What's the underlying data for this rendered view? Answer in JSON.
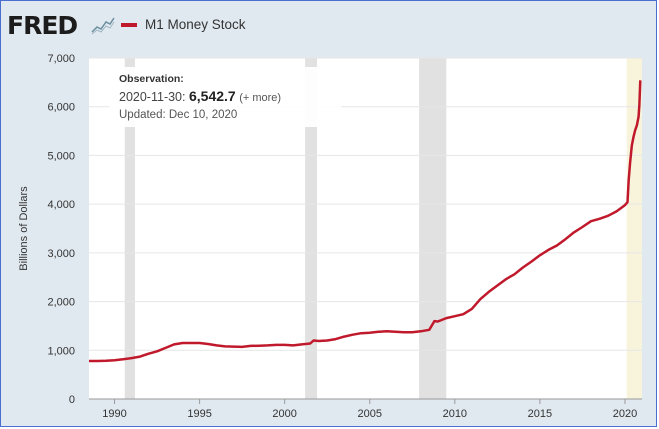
{
  "header": {
    "logo_text": "FRED",
    "logo_icon": "fred-sparkline-icon",
    "legend_label": "M1 Money Stock",
    "legend_color": "#c0192c"
  },
  "tooltip": {
    "title": "Observation:",
    "date": "2020-11-30:",
    "value": "6,542.7",
    "more": "(+ more)",
    "updated": "Updated: Dec 10, 2020"
  },
  "colors": {
    "frame_bg": "#e1e9f0",
    "plot_bg": "#ffffff",
    "recession": "#e1e1e1",
    "highlight": "#f8f4dc",
    "series": "#c0192c",
    "gridline": "#e6e6e6",
    "border": "#4a6fd1"
  },
  "chart_data": {
    "type": "line",
    "ylabel": "Billions of Dollars",
    "xlim": [
      1988.5,
      2021.0
    ],
    "ylim": [
      0,
      7000
    ],
    "x_ticks": [
      1990,
      1995,
      2000,
      2005,
      2010,
      2015,
      2020
    ],
    "y_ticks": [
      0,
      1000,
      2000,
      3000,
      4000,
      5000,
      6000,
      7000
    ],
    "y_tick_labels": [
      "0",
      "1,000",
      "2,000",
      "3,000",
      "4,000",
      "5,000",
      "6,000",
      "7,000"
    ],
    "grid": true,
    "recessions": [
      [
        1990.6,
        1991.2
      ],
      [
        2001.2,
        2001.9
      ],
      [
        2007.9,
        2009.5
      ]
    ],
    "highlight": [
      2020.1,
      2021.0
    ],
    "series": [
      {
        "name": "M1 Money Stock",
        "x": [
          1988.5,
          1989.0,
          1989.5,
          1990.0,
          1990.5,
          1991.0,
          1991.5,
          1992.0,
          1992.5,
          1993.0,
          1993.5,
          1994.0,
          1994.5,
          1995.0,
          1995.5,
          1996.0,
          1996.5,
          1997.0,
          1997.5,
          1998.0,
          1998.5,
          1999.0,
          1999.5,
          2000.0,
          2000.5,
          2001.0,
          2001.5,
          2001.7,
          2002.0,
          2002.5,
          2003.0,
          2003.5,
          2004.0,
          2004.5,
          2005.0,
          2005.5,
          2006.0,
          2006.5,
          2007.0,
          2007.5,
          2008.0,
          2008.5,
          2008.8,
          2009.0,
          2009.5,
          2010.0,
          2010.5,
          2011.0,
          2011.5,
          2012.0,
          2012.5,
          2013.0,
          2013.5,
          2014.0,
          2014.5,
          2015.0,
          2015.5,
          2016.0,
          2016.5,
          2017.0,
          2017.5,
          2018.0,
          2018.5,
          2019.0,
          2019.5,
          2020.0,
          2020.15,
          2020.22,
          2020.3,
          2020.4,
          2020.5,
          2020.6,
          2020.7,
          2020.8,
          2020.85,
          2020.9
        ],
        "values": [
          780,
          780,
          785,
          795,
          815,
          840,
          870,
          930,
          980,
          1050,
          1120,
          1150,
          1150,
          1150,
          1130,
          1100,
          1080,
          1075,
          1070,
          1090,
          1095,
          1100,
          1110,
          1110,
          1100,
          1120,
          1140,
          1200,
          1190,
          1200,
          1230,
          1280,
          1320,
          1350,
          1360,
          1380,
          1390,
          1380,
          1370,
          1370,
          1390,
          1420,
          1600,
          1590,
          1660,
          1700,
          1740,
          1850,
          2050,
          2200,
          2330,
          2460,
          2560,
          2700,
          2820,
          2950,
          3060,
          3150,
          3280,
          3420,
          3530,
          3650,
          3700,
          3760,
          3850,
          3980,
          4040,
          4500,
          4850,
          5200,
          5380,
          5520,
          5620,
          5800,
          6050,
          6542.7
        ]
      }
    ]
  }
}
